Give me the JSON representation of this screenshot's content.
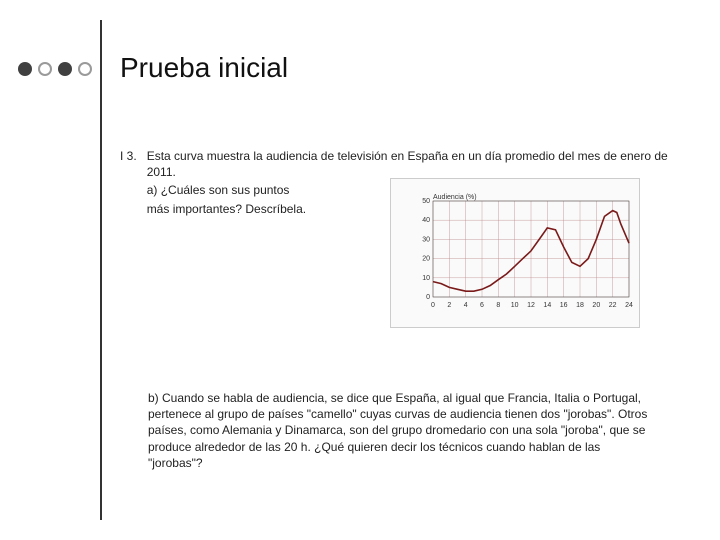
{
  "bullets": {
    "count": 4
  },
  "title": "Prueba inicial",
  "item": {
    "number": "I 3.",
    "intro": "Esta curva muestra la audiencia de televisión en España en un día promedio del mes de enero de 2011.",
    "part_a_line1": "a) ¿Cuáles son sus puntos",
    "part_a_line2": "más importantes? Descríbela.",
    "part_b": "b) Cuando se habla de audiencia, se dice que España, al igual que Francia, Italia o Portugal, pertenece al grupo de países \"camello\" cuyas curvas de audiencia tienen dos \"jorobas\". Otros países, como Alemania y Dinamarca, son del grupo dromedario con una sola \"joroba\", que se produce alrededor de las 20 h. ¿Qué quieren decir los técnicos cuando hablan de las \"jorobas\"?"
  },
  "chart": {
    "type": "line",
    "y_label": "Audiencia (%)",
    "xlim": [
      0,
      24
    ],
    "ylim": [
      0,
      50
    ],
    "xtick_step": 2,
    "xtick_labels": [
      "0",
      "2",
      "4",
      "6",
      "8",
      "10",
      "12",
      "14",
      "16",
      "18",
      "20",
      "22",
      "24"
    ],
    "ytick_step": 10,
    "ytick_labels": [
      "0",
      "10",
      "20",
      "30",
      "40",
      "50"
    ],
    "grid_color": "#bb8888",
    "background_color": "#fafafa",
    "curve_color": "#7a1a1a",
    "axis_font_size": 7,
    "curve_points": [
      [
        0,
        8
      ],
      [
        1,
        7
      ],
      [
        2,
        5
      ],
      [
        3,
        4
      ],
      [
        4,
        3
      ],
      [
        5,
        3
      ],
      [
        6,
        4
      ],
      [
        7,
        6
      ],
      [
        8,
        9
      ],
      [
        9,
        12
      ],
      [
        10,
        16
      ],
      [
        11,
        20
      ],
      [
        12,
        24
      ],
      [
        13,
        30
      ],
      [
        14,
        36
      ],
      [
        15,
        35
      ],
      [
        16,
        26
      ],
      [
        17,
        18
      ],
      [
        18,
        16
      ],
      [
        19,
        20
      ],
      [
        20,
        30
      ],
      [
        21,
        42
      ],
      [
        22,
        45
      ],
      [
        22.5,
        44
      ],
      [
        23,
        38
      ],
      [
        24,
        28
      ]
    ]
  }
}
